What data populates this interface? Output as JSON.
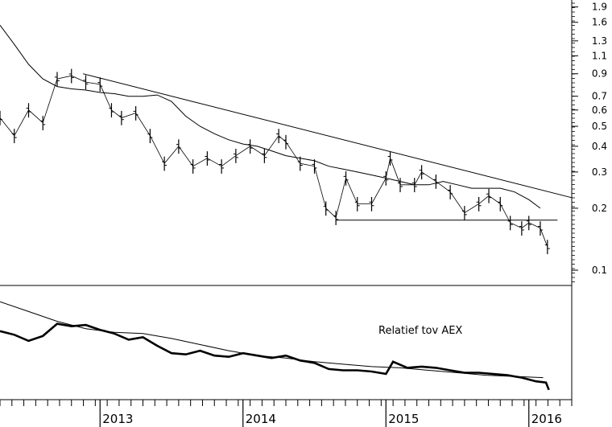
{
  "chart_data": [
    {
      "type": "line",
      "name": "price-panel",
      "scale": "log",
      "ylim": [
        0.085,
        2.0
      ],
      "xlim": [
        2012.3,
        2016.3
      ],
      "y_ticks": [
        "1.9",
        "1.6",
        "1.3",
        "1.1",
        "0.9",
        "0.7",
        "0.6",
        "0.5",
        "0.4",
        "0.3",
        "0.2",
        "0.1"
      ],
      "series": [
        {
          "style": "bars",
          "x": [
            2012.3,
            2012.4,
            2012.5,
            2012.6,
            2012.7,
            2012.8,
            2012.9,
            2013.0,
            2013.08,
            2013.15,
            2013.25,
            2013.35,
            2013.45,
            2013.55,
            2013.65,
            2013.75,
            2013.85,
            2013.95,
            2014.05,
            2014.15,
            2014.25,
            2014.3,
            2014.4,
            2014.5,
            2014.58,
            2014.65,
            2014.72,
            2014.8,
            2014.9,
            2015.0,
            2015.03,
            2015.1,
            2015.2,
            2015.25,
            2015.35,
            2015.45,
            2015.55,
            2015.65,
            2015.72,
            2015.8,
            2015.87,
            2015.95,
            2016.0,
            2016.08,
            2016.13
          ],
          "values": [
            0.55,
            0.45,
            0.6,
            0.52,
            0.85,
            0.88,
            0.82,
            0.8,
            0.6,
            0.55,
            0.58,
            0.45,
            0.33,
            0.4,
            0.32,
            0.35,
            0.32,
            0.36,
            0.4,
            0.36,
            0.45,
            0.42,
            0.33,
            0.32,
            0.2,
            0.18,
            0.28,
            0.21,
            0.21,
            0.28,
            0.35,
            0.26,
            0.26,
            0.3,
            0.27,
            0.24,
            0.19,
            0.21,
            0.23,
            0.21,
            0.17,
            0.16,
            0.17,
            0.16,
            0.13
          ]
        },
        {
          "style": "moving-average",
          "x": [
            2012.3,
            2012.4,
            2012.5,
            2012.6,
            2012.7,
            2012.8,
            2012.9,
            2013.0,
            2013.1,
            2013.2,
            2013.3,
            2013.4,
            2013.5,
            2013.6,
            2013.7,
            2013.8,
            2013.9,
            2014.0,
            2014.1,
            2014.2,
            2014.3,
            2014.4,
            2014.5,
            2014.6,
            2014.7,
            2014.8,
            2014.9,
            2015.0,
            2015.1,
            2015.2,
            2015.3,
            2015.4,
            2015.5,
            2015.6,
            2015.7,
            2015.8,
            2015.9,
            2016.0,
            2016.08
          ],
          "values": [
            1.55,
            1.25,
            1.0,
            0.85,
            0.78,
            0.76,
            0.75,
            0.73,
            0.72,
            0.7,
            0.7,
            0.71,
            0.66,
            0.56,
            0.5,
            0.46,
            0.43,
            0.41,
            0.4,
            0.38,
            0.36,
            0.35,
            0.34,
            0.32,
            0.31,
            0.3,
            0.29,
            0.28,
            0.27,
            0.26,
            0.26,
            0.27,
            0.26,
            0.25,
            0.25,
            0.25,
            0.24,
            0.22,
            0.2
          ]
        },
        {
          "style": "trendline",
          "x": [
            2012.88,
            2016.3
          ],
          "values": [
            0.9,
            0.225
          ]
        },
        {
          "style": "support-line",
          "x": [
            2014.65,
            2016.2
          ],
          "values": [
            0.175,
            0.175
          ]
        }
      ]
    },
    {
      "type": "line",
      "name": "relative-panel",
      "annotation": "Relatief tov AEX",
      "series": [
        {
          "style": "relative",
          "x": [
            2012.3,
            2012.4,
            2012.5,
            2012.6,
            2012.7,
            2012.8,
            2012.9,
            2013.0,
            2013.1,
            2013.2,
            2013.3,
            2013.4,
            2013.5,
            2013.6,
            2013.7,
            2013.8,
            2013.9,
            2014.0,
            2014.1,
            2014.2,
            2014.3,
            2014.4,
            2014.5,
            2014.6,
            2014.7,
            2014.8,
            2014.9,
            2015.0,
            2015.05,
            2015.15,
            2015.25,
            2015.35,
            2015.45,
            2015.55,
            2015.65,
            2015.75,
            2015.85,
            2015.95,
            2016.05,
            2016.12,
            2016.14
          ],
          "values": [
            96,
            93,
            88,
            92,
            102,
            100,
            101,
            97,
            94,
            89,
            91,
            84,
            78,
            77,
            80,
            76,
            75,
            78,
            76,
            74,
            76,
            72,
            70,
            65,
            64,
            64,
            63,
            61,
            71,
            66,
            67,
            66,
            64,
            62,
            62,
            61,
            60,
            58,
            55,
            54,
            48
          ]
        },
        {
          "style": "relative-average",
          "x": [
            2012.3,
            2012.5,
            2012.7,
            2012.9,
            2013.1,
            2013.3,
            2013.5,
            2013.7,
            2013.9,
            2014.1,
            2014.3,
            2014.5,
            2014.7,
            2014.9,
            2015.1,
            2015.3,
            2015.5,
            2015.7,
            2015.9,
            2016.1
          ],
          "values": [
            120,
            112,
            104,
            98,
            95,
            94,
            90,
            85,
            80,
            76,
            74,
            71,
            69,
            67,
            66,
            64,
            62,
            60,
            59,
            58
          ]
        }
      ]
    }
  ],
  "x_axis": {
    "year_labels": [
      "2013",
      "2014",
      "2015",
      "2016"
    ],
    "year_positions": [
      2013.0,
      2014.0,
      2015.0,
      2016.0
    ]
  }
}
